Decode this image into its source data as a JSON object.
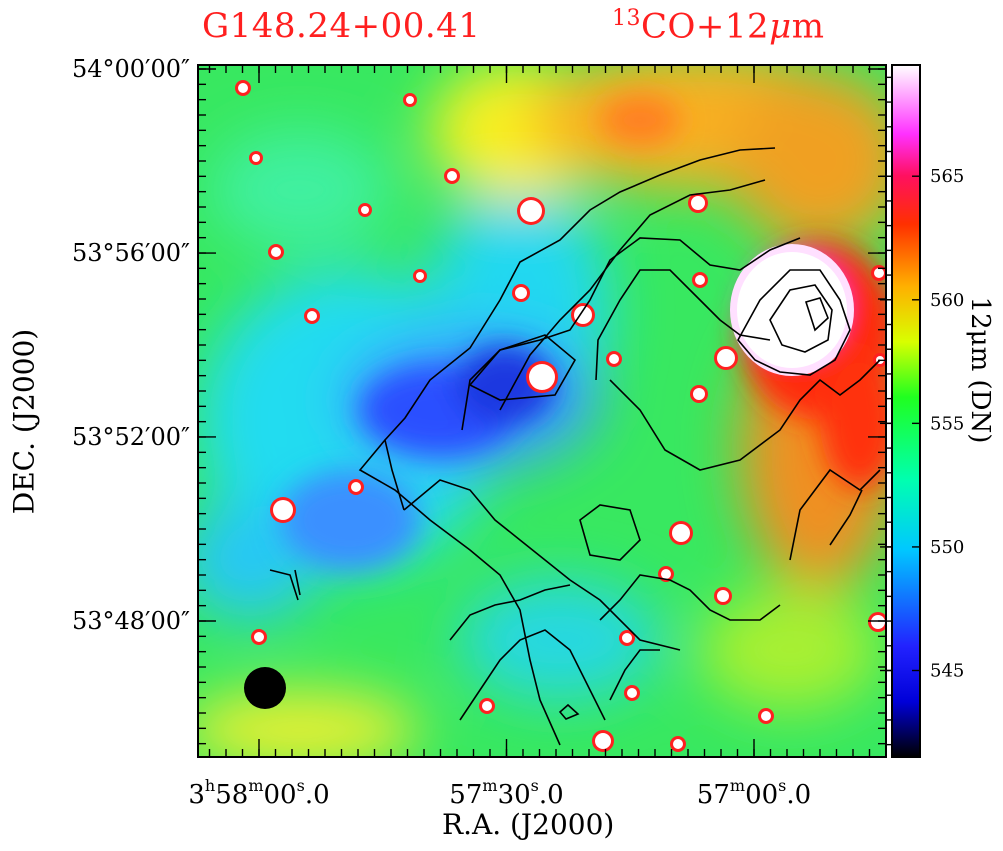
{
  "titles": {
    "source_name": "G148.24+00.41",
    "tracer_sup": "13",
    "tracer_rest": "CO+12",
    "tracer_mu": "μ",
    "tracer_unit": "m"
  },
  "axes": {
    "x_label": "R.A.  (J2000)",
    "y_label": "DEC.  (J2000)",
    "colorbar_label": "12μm  (DN)"
  },
  "colors": {
    "title": "#ff1f1f",
    "contour": "#000000",
    "colormap": [
      "#000000",
      "#0000ff",
      "#00ffff",
      "#00ff00",
      "#ffff00",
      "#ff0000",
      "#ff00ff",
      "#ffffff"
    ]
  },
  "chart_data": {
    "type": "heatmap",
    "image_band": "12μm",
    "contour_tracer": "13CO",
    "beam_marker": "filled black circle (lower-left)",
    "x_ticks": [
      {
        "h": "3",
        "m": "58",
        "s": "00",
        "frac": "0"
      },
      {
        "h": "",
        "m": "57",
        "s": "30",
        "frac": "0"
      },
      {
        "h": "",
        "m": "57",
        "s": "00",
        "frac": "0"
      }
    ],
    "x_tick_values_deg": [
      59.5,
      59.375,
      59.25
    ],
    "y_ticks": [
      "54°00′00″",
      "53°56′00″",
      "53°52′00″",
      "53°48′00″"
    ],
    "y_tick_values_deg": [
      54.0,
      53.9333,
      53.8667,
      53.8
    ],
    "colorbar": {
      "range": [
        541.5,
        569.5
      ],
      "ticks": [
        "545",
        "550",
        "555",
        "560",
        "565"
      ],
      "tick_values": [
        545,
        550,
        555,
        560,
        565
      ]
    },
    "grid": false,
    "legend": "none"
  }
}
